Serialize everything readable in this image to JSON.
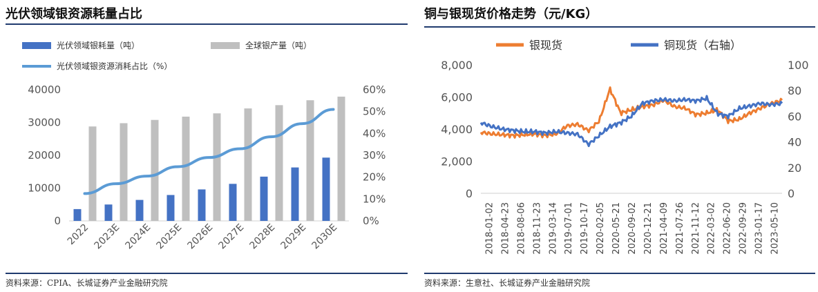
{
  "colors": {
    "left_bar1": "#4472c4",
    "left_bar2": "#bfbfbf",
    "left_line": "#5b9bd5",
    "right_silver": "#ed7d31",
    "right_copper": "#4472c4",
    "rule": "#1f3a6e"
  },
  "left": {
    "title": "光伏领域银资源耗量占比",
    "source": "资料来源：CPIA、长城证券产业金融研究院"
  },
  "right": {
    "title": "铜与银现货价格走势（元/KG）",
    "source": "资料来源：生意社、长城证券产业金融研究院"
  },
  "chart_data": [
    {
      "type": "bar",
      "title": "光伏领域银资源耗量占比",
      "categories": [
        "2022",
        "2023E",
        "2024E",
        "2025E",
        "2026E",
        "2027E",
        "2028E",
        "2029E",
        "2030E"
      ],
      "series": [
        {
          "name": "光伏领域银耗量（吨）",
          "kind": "bar",
          "axis": "left",
          "values": [
            3600,
            5000,
            6400,
            7900,
            9600,
            11300,
            13500,
            16300,
            19300
          ]
        },
        {
          "name": "全球银产量（吨）",
          "kind": "bar",
          "axis": "left",
          "values": [
            28800,
            29800,
            30800,
            31800,
            32800,
            34300,
            35300,
            36800,
            37900
          ]
        },
        {
          "name": "光伏领域银资源消耗占比（%）",
          "kind": "line",
          "axis": "right",
          "values": [
            12.5,
            17.0,
            20.5,
            24.8,
            29.0,
            33.0,
            38.5,
            44.5,
            51.0
          ]
        }
      ],
      "y_left": {
        "min": 0,
        "max": 40000,
        "ticks": [
          "0",
          "10000",
          "20000",
          "30000",
          "40000"
        ],
        "tick_values": [
          0,
          10000,
          20000,
          30000,
          40000
        ]
      },
      "y_right": {
        "min": 0,
        "max": 60,
        "ticks": [
          "0%",
          "10%",
          "20%",
          "30%",
          "40%",
          "50%",
          "60%"
        ],
        "tick_values": [
          0,
          10,
          20,
          30,
          40,
          50,
          60
        ]
      },
      "legend": [
        "光伏领域银耗量（吨）",
        "全球银产量（吨）",
        "光伏领域银资源消耗占比（%）"
      ],
      "grid": false
    },
    {
      "type": "line",
      "title": "铜与银现货价格走势（元/KG）",
      "x_tick_labels": [
        "2018-01-02",
        "2018-04-23",
        "2018-08-06",
        "2018-11-23",
        "2019-03-14",
        "2019-07-01",
        "2019-10-17",
        "2020-02-05",
        "2020-05-21",
        "2020-09-02",
        "2020-12-21",
        "2021-04-09",
        "2021-07-26",
        "2021-11-12",
        "2022-03-02",
        "2022-06-20",
        "2022-09-29",
        "2023-01-17",
        "2023-05-10"
      ],
      "series": [
        {
          "name": "银现货",
          "axis": "left",
          "values": [
            3800,
            3700,
            3650,
            3600,
            3650,
            3700,
            3600,
            3700,
            4200,
            4300,
            3900,
            4500,
            6500,
            5000,
            5200,
            5400,
            5500,
            5800,
            5400,
            5300,
            4900,
            5000,
            5200,
            4500,
            4600,
            5000,
            5300,
            5600,
            5800
          ]
        },
        {
          "name": "铜现货（右轴）",
          "axis": "right",
          "values": [
            55,
            52,
            50,
            49,
            48,
            48,
            47,
            48,
            47,
            46,
            38,
            45,
            52,
            55,
            60,
            70,
            72,
            73,
            72,
            73,
            72,
            74,
            62,
            60,
            66,
            68,
            70,
            69,
            70
          ]
        },
        {
          "name": "_x_tick_index_for_each_label",
          "axis": "none",
          "values": []
        }
      ],
      "y_left": {
        "min": 0,
        "max": 8000,
        "ticks": [
          "0",
          "2,000",
          "4,000",
          "6,000",
          "8,000"
        ],
        "tick_values": [
          0,
          2000,
          4000,
          6000,
          8000
        ]
      },
      "y_right": {
        "min": 0,
        "max": 100,
        "ticks": [
          "0",
          "20",
          "40",
          "60",
          "80",
          "100"
        ],
        "tick_values": [
          0,
          20,
          40,
          60,
          80,
          100
        ]
      },
      "legend": [
        "银现货",
        "铜现货（右轴）"
      ],
      "grid": false
    }
  ]
}
